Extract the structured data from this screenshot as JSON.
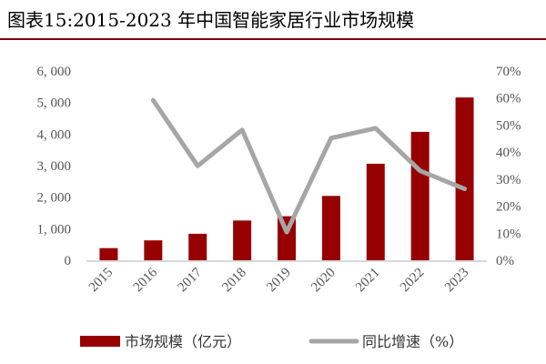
{
  "chart_data": {
    "type": "bar+line",
    "title": "图表15:2015-2023 年中国智能家居行业市场规模",
    "categories": [
      "2015",
      "2016",
      "2017",
      "2018",
      "2019",
      "2020",
      "2021",
      "2022",
      "2023"
    ],
    "series": [
      {
        "name": "市场规模（亿元）",
        "type": "bar",
        "axis": "left",
        "color": "#960000",
        "values": [
          385,
          630,
          840,
          1260,
          1395,
          2040,
          3060,
          4070,
          5160
        ]
      },
      {
        "name": "同比增速（%）",
        "type": "line",
        "axis": "right",
        "color": "#a6a6a6",
        "values": [
          null,
          59.2,
          34.9,
          48.2,
          10.4,
          45.2,
          48.8,
          33.1,
          26.4
        ]
      }
    ],
    "y_left": {
      "range": [
        0,
        6000
      ],
      "ticks": [
        "0",
        "1, 000",
        "2, 000",
        "3, 000",
        "4, 000",
        "5, 000",
        "6, 000"
      ]
    },
    "y_right": {
      "range": [
        0,
        70
      ],
      "ticks": [
        "0%",
        "10%",
        "20%",
        "30%",
        "40%",
        "50%",
        "60%",
        "70%"
      ]
    },
    "grid": false,
    "legend": "bottom"
  }
}
